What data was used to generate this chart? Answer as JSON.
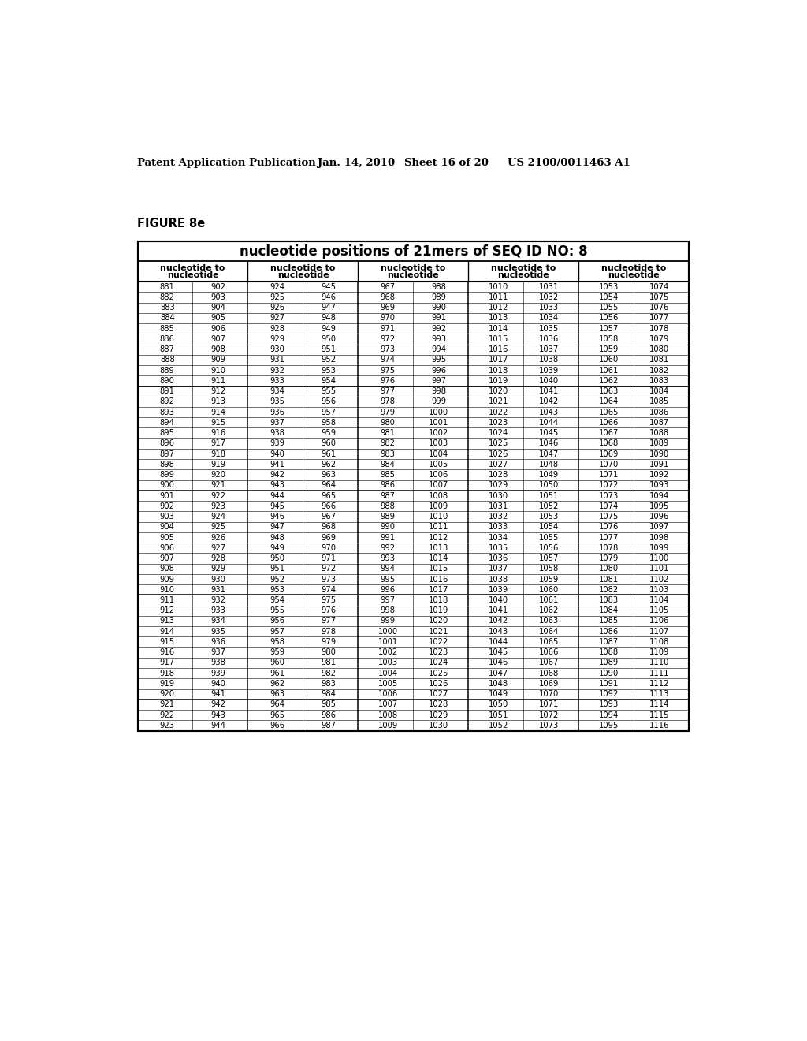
{
  "header_text": "Patent Application Publication",
  "date_text": "Jan. 14, 2010",
  "sheet_text": "Sheet 16 of 20",
  "patent_text": "US 2100/0011463 A1",
  "figure_label": "FIGURE 8e",
  "table_title": "nucleotide positions of 21mers of SEQ ID NO: 8",
  "data_rows": [
    [
      881,
      902,
      924,
      945,
      967,
      988,
      1010,
      1031,
      1053,
      1074
    ],
    [
      882,
      903,
      925,
      946,
      968,
      989,
      1011,
      1032,
      1054,
      1075
    ],
    [
      883,
      904,
      926,
      947,
      969,
      990,
      1012,
      1033,
      1055,
      1076
    ],
    [
      884,
      905,
      927,
      948,
      970,
      991,
      1013,
      1034,
      1056,
      1077
    ],
    [
      885,
      906,
      928,
      949,
      971,
      992,
      1014,
      1035,
      1057,
      1078
    ],
    [
      886,
      907,
      929,
      950,
      972,
      993,
      1015,
      1036,
      1058,
      1079
    ],
    [
      887,
      908,
      930,
      951,
      973,
      994,
      1016,
      1037,
      1059,
      1080
    ],
    [
      888,
      909,
      931,
      952,
      974,
      995,
      1017,
      1038,
      1060,
      1081
    ],
    [
      889,
      910,
      932,
      953,
      975,
      996,
      1018,
      1039,
      1061,
      1082
    ],
    [
      890,
      911,
      933,
      954,
      976,
      997,
      1019,
      1040,
      1062,
      1083
    ],
    [
      891,
      912,
      934,
      955,
      977,
      998,
      1020,
      1041,
      1063,
      1084
    ],
    [
      892,
      913,
      935,
      956,
      978,
      999,
      1021,
      1042,
      1064,
      1085
    ],
    [
      893,
      914,
      936,
      957,
      979,
      1000,
      1022,
      1043,
      1065,
      1086
    ],
    [
      894,
      915,
      937,
      958,
      980,
      1001,
      1023,
      1044,
      1066,
      1087
    ],
    [
      895,
      916,
      938,
      959,
      981,
      1002,
      1024,
      1045,
      1067,
      1088
    ],
    [
      896,
      917,
      939,
      960,
      982,
      1003,
      1025,
      1046,
      1068,
      1089
    ],
    [
      897,
      918,
      940,
      961,
      983,
      1004,
      1026,
      1047,
      1069,
      1090
    ],
    [
      898,
      919,
      941,
      962,
      984,
      1005,
      1027,
      1048,
      1070,
      1091
    ],
    [
      899,
      920,
      942,
      963,
      985,
      1006,
      1028,
      1049,
      1071,
      1092
    ],
    [
      900,
      921,
      943,
      964,
      986,
      1007,
      1029,
      1050,
      1072,
      1093
    ],
    [
      901,
      922,
      944,
      965,
      987,
      1008,
      1030,
      1051,
      1073,
      1094
    ],
    [
      902,
      923,
      945,
      966,
      988,
      1009,
      1031,
      1052,
      1074,
      1095
    ],
    [
      903,
      924,
      946,
      967,
      989,
      1010,
      1032,
      1053,
      1075,
      1096
    ],
    [
      904,
      925,
      947,
      968,
      990,
      1011,
      1033,
      1054,
      1076,
      1097
    ],
    [
      905,
      926,
      948,
      969,
      991,
      1012,
      1034,
      1055,
      1077,
      1098
    ],
    [
      906,
      927,
      949,
      970,
      992,
      1013,
      1035,
      1056,
      1078,
      1099
    ],
    [
      907,
      928,
      950,
      971,
      993,
      1014,
      1036,
      1057,
      1079,
      1100
    ],
    [
      908,
      929,
      951,
      972,
      994,
      1015,
      1037,
      1058,
      1080,
      1101
    ],
    [
      909,
      930,
      952,
      973,
      995,
      1016,
      1038,
      1059,
      1081,
      1102
    ],
    [
      910,
      931,
      953,
      974,
      996,
      1017,
      1039,
      1060,
      1082,
      1103
    ],
    [
      911,
      932,
      954,
      975,
      997,
      1018,
      1040,
      1061,
      1083,
      1104
    ],
    [
      912,
      933,
      955,
      976,
      998,
      1019,
      1041,
      1062,
      1084,
      1105
    ],
    [
      913,
      934,
      956,
      977,
      999,
      1020,
      1042,
      1063,
      1085,
      1106
    ],
    [
      914,
      935,
      957,
      978,
      1000,
      1021,
      1043,
      1064,
      1086,
      1107
    ],
    [
      915,
      936,
      958,
      979,
      1001,
      1022,
      1044,
      1065,
      1087,
      1108
    ],
    [
      916,
      937,
      959,
      980,
      1002,
      1023,
      1045,
      1066,
      1088,
      1109
    ],
    [
      917,
      938,
      960,
      981,
      1003,
      1024,
      1046,
      1067,
      1089,
      1110
    ],
    [
      918,
      939,
      961,
      982,
      1004,
      1025,
      1047,
      1068,
      1090,
      1111
    ],
    [
      919,
      940,
      962,
      983,
      1005,
      1026,
      1048,
      1069,
      1091,
      1112
    ],
    [
      920,
      941,
      963,
      984,
      1006,
      1027,
      1049,
      1070,
      1092,
      1113
    ],
    [
      921,
      942,
      964,
      985,
      1007,
      1028,
      1050,
      1071,
      1093,
      1114
    ],
    [
      922,
      943,
      965,
      986,
      1008,
      1029,
      1051,
      1072,
      1094,
      1115
    ],
    [
      923,
      944,
      966,
      987,
      1009,
      1030,
      1052,
      1073,
      1095,
      1116
    ]
  ],
  "background_color": "#ffffff",
  "text_color": "#000000"
}
